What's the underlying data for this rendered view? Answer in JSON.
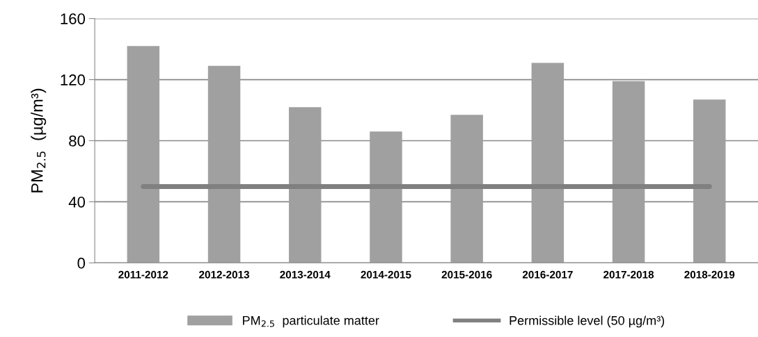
{
  "chart_data": {
    "type": "bar",
    "ylabel": "PM$_{2.5}$  (µg/m³)",
    "categories": [
      "2011-2012",
      "2012-2013",
      "2013-2014",
      "2014-2015",
      "2015-2016",
      "2016-2017",
      "2017-2018",
      "2018-2019"
    ],
    "series": [
      {
        "name": "PM$_{2.5}$  particulate matter",
        "color": "#a0a0a0",
        "values": [
          142,
          129,
          102,
          86,
          97,
          131,
          119,
          107
        ]
      },
      {
        "name": "Permissible level (50 µg/m³)",
        "type": "line",
        "color": "#808080",
        "values": [
          50,
          50,
          50,
          50,
          50,
          50,
          50,
          50
        ]
      }
    ],
    "ylim": [
      0,
      160
    ],
    "yticks": [
      0,
      40,
      80,
      120,
      160
    ],
    "grid": "y",
    "legend": "bottom",
    "marker": "none"
  }
}
